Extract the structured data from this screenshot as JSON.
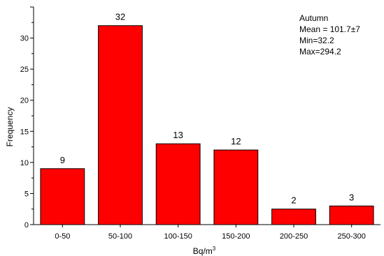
{
  "chart_data": {
    "type": "bar",
    "categories": [
      "0-50",
      "50-100",
      "100-150",
      "150-200",
      "200-250",
      "250-300"
    ],
    "values": [
      9,
      32,
      13,
      12,
      2.5,
      3
    ],
    "data_labels": [
      "9",
      "32",
      "13",
      "12",
      "2",
      "3"
    ],
    "xlabel": "Bq/m",
    "xlabel_superscript": "3",
    "ylabel": "Frequency",
    "ylim": [
      0,
      35
    ],
    "yticks": [
      0,
      5,
      10,
      15,
      20,
      25,
      30
    ],
    "grid": false,
    "bar_color": "#ff0000",
    "bar_edge_color": "#000000",
    "annotation": [
      "Autumn",
      "Mean = 101.7±7",
      "Min=32.2",
      "Max=294.2"
    ]
  }
}
